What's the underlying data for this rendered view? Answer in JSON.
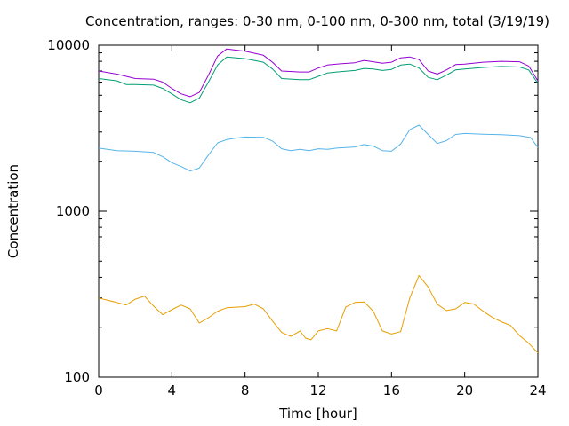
{
  "chart_data": {
    "type": "line",
    "title": "Concentration, ranges: 0-30 nm, 0-100 nm, 0-300 nm, total (3/19/19)",
    "xlabel": "Time [hour]",
    "ylabel": "Concentration",
    "xlim": [
      0,
      24
    ],
    "ylim": [
      100,
      10000
    ],
    "yscale": "log",
    "grid": false,
    "legend": "none",
    "x_ticks": [
      0,
      4,
      8,
      12,
      16,
      20,
      24
    ],
    "x_tick_labels": [
      "0",
      "4",
      "8",
      "12",
      "16",
      "20",
      "24"
    ],
    "y_ticks": [
      100,
      1000,
      10000
    ],
    "y_tick_labels": [
      "100",
      "1000",
      "10000"
    ],
    "series": [
      {
        "color": "#e69f00",
        "points": [
          [
            0,
            300
          ],
          [
            1,
            282
          ],
          [
            1.5,
            272
          ],
          [
            2,
            295
          ],
          [
            2.5,
            308
          ],
          [
            3,
            268
          ],
          [
            3.5,
            238
          ],
          [
            4,
            255
          ],
          [
            4.5,
            272
          ],
          [
            5,
            258
          ],
          [
            5.5,
            212
          ],
          [
            6,
            228
          ],
          [
            6.5,
            250
          ],
          [
            7,
            262
          ],
          [
            8,
            266
          ],
          [
            8.5,
            276
          ],
          [
            9,
            258
          ],
          [
            9.5,
            218
          ],
          [
            10,
            186
          ],
          [
            10.5,
            176
          ],
          [
            11,
            190
          ],
          [
            11.3,
            172
          ],
          [
            11.6,
            168
          ],
          [
            12,
            190
          ],
          [
            12.5,
            196
          ],
          [
            13,
            190
          ],
          [
            13.5,
            265
          ],
          [
            14,
            282
          ],
          [
            14.5,
            284
          ],
          [
            15,
            250
          ],
          [
            15.5,
            190
          ],
          [
            16,
            182
          ],
          [
            16.5,
            188
          ],
          [
            17,
            300
          ],
          [
            17.5,
            410
          ],
          [
            18,
            350
          ],
          [
            18.5,
            275
          ],
          [
            19,
            252
          ],
          [
            19.5,
            258
          ],
          [
            20,
            282
          ],
          [
            20.5,
            276
          ],
          [
            21,
            250
          ],
          [
            21.5,
            230
          ],
          [
            22,
            216
          ],
          [
            22.5,
            205
          ],
          [
            23,
            178
          ],
          [
            23.5,
            160
          ],
          [
            24,
            140
          ]
        ]
      },
      {
        "color": "#56b4e9",
        "points": [
          [
            0,
            2400
          ],
          [
            1,
            2320
          ],
          [
            2,
            2300
          ],
          [
            3,
            2260
          ],
          [
            3.5,
            2130
          ],
          [
            4,
            1960
          ],
          [
            4.5,
            1860
          ],
          [
            5,
            1750
          ],
          [
            5.5,
            1820
          ],
          [
            6,
            2180
          ],
          [
            6.5,
            2580
          ],
          [
            7,
            2700
          ],
          [
            7.5,
            2760
          ],
          [
            8,
            2800
          ],
          [
            9,
            2790
          ],
          [
            9.5,
            2650
          ],
          [
            10,
            2380
          ],
          [
            10.5,
            2320
          ],
          [
            11,
            2360
          ],
          [
            11.5,
            2320
          ],
          [
            12,
            2380
          ],
          [
            12.5,
            2360
          ],
          [
            13,
            2400
          ],
          [
            14,
            2440
          ],
          [
            14.5,
            2520
          ],
          [
            15,
            2470
          ],
          [
            15.5,
            2320
          ],
          [
            16,
            2300
          ],
          [
            16.5,
            2540
          ],
          [
            17,
            3100
          ],
          [
            17.5,
            3300
          ],
          [
            18,
            2900
          ],
          [
            18.5,
            2560
          ],
          [
            19,
            2660
          ],
          [
            19.5,
            2900
          ],
          [
            20,
            2940
          ],
          [
            21,
            2910
          ],
          [
            22,
            2890
          ],
          [
            23,
            2850
          ],
          [
            23.6,
            2780
          ],
          [
            24,
            2420
          ]
        ]
      },
      {
        "color": "#009e73",
        "points": [
          [
            0,
            6300
          ],
          [
            1,
            6100
          ],
          [
            1.5,
            5800
          ],
          [
            2,
            5800
          ],
          [
            3,
            5750
          ],
          [
            3.5,
            5500
          ],
          [
            4,
            5100
          ],
          [
            4.5,
            4700
          ],
          [
            5,
            4500
          ],
          [
            5.5,
            4800
          ],
          [
            6,
            6000
          ],
          [
            6.5,
            7600
          ],
          [
            7,
            8500
          ],
          [
            8,
            8300
          ],
          [
            9,
            7900
          ],
          [
            9.5,
            7200
          ],
          [
            10,
            6300
          ],
          [
            11,
            6200
          ],
          [
            11.5,
            6200
          ],
          [
            12,
            6500
          ],
          [
            12.5,
            6800
          ],
          [
            13,
            6900
          ],
          [
            14,
            7050
          ],
          [
            14.5,
            7250
          ],
          [
            15,
            7200
          ],
          [
            15.5,
            7050
          ],
          [
            16,
            7150
          ],
          [
            16.5,
            7600
          ],
          [
            17,
            7700
          ],
          [
            17.5,
            7300
          ],
          [
            18,
            6400
          ],
          [
            18.5,
            6200
          ],
          [
            19,
            6600
          ],
          [
            19.5,
            7100
          ],
          [
            20,
            7200
          ],
          [
            21,
            7350
          ],
          [
            22,
            7450
          ],
          [
            23,
            7400
          ],
          [
            23.5,
            7100
          ],
          [
            24,
            5900
          ]
        ]
      },
      {
        "color": "#9400d3",
        "points": [
          [
            0,
            7000
          ],
          [
            1,
            6700
          ],
          [
            1.5,
            6500
          ],
          [
            2,
            6300
          ],
          [
            3,
            6250
          ],
          [
            3.5,
            6000
          ],
          [
            4,
            5500
          ],
          [
            4.5,
            5100
          ],
          [
            5,
            4900
          ],
          [
            5.5,
            5200
          ],
          [
            6,
            6600
          ],
          [
            6.5,
            8600
          ],
          [
            7,
            9500
          ],
          [
            8,
            9200
          ],
          [
            9,
            8700
          ],
          [
            9.5,
            7900
          ],
          [
            10,
            7000
          ],
          [
            11,
            6900
          ],
          [
            11.5,
            6900
          ],
          [
            12,
            7300
          ],
          [
            12.5,
            7600
          ],
          [
            13,
            7700
          ],
          [
            14,
            7850
          ],
          [
            14.5,
            8100
          ],
          [
            15,
            7950
          ],
          [
            15.5,
            7800
          ],
          [
            16,
            7900
          ],
          [
            16.5,
            8400
          ],
          [
            17,
            8500
          ],
          [
            17.5,
            8200
          ],
          [
            18,
            7000
          ],
          [
            18.5,
            6700
          ],
          [
            19,
            7100
          ],
          [
            19.5,
            7650
          ],
          [
            20,
            7700
          ],
          [
            21,
            7900
          ],
          [
            22,
            8000
          ],
          [
            23,
            7950
          ],
          [
            23.5,
            7500
          ],
          [
            24,
            6100
          ]
        ]
      }
    ]
  }
}
